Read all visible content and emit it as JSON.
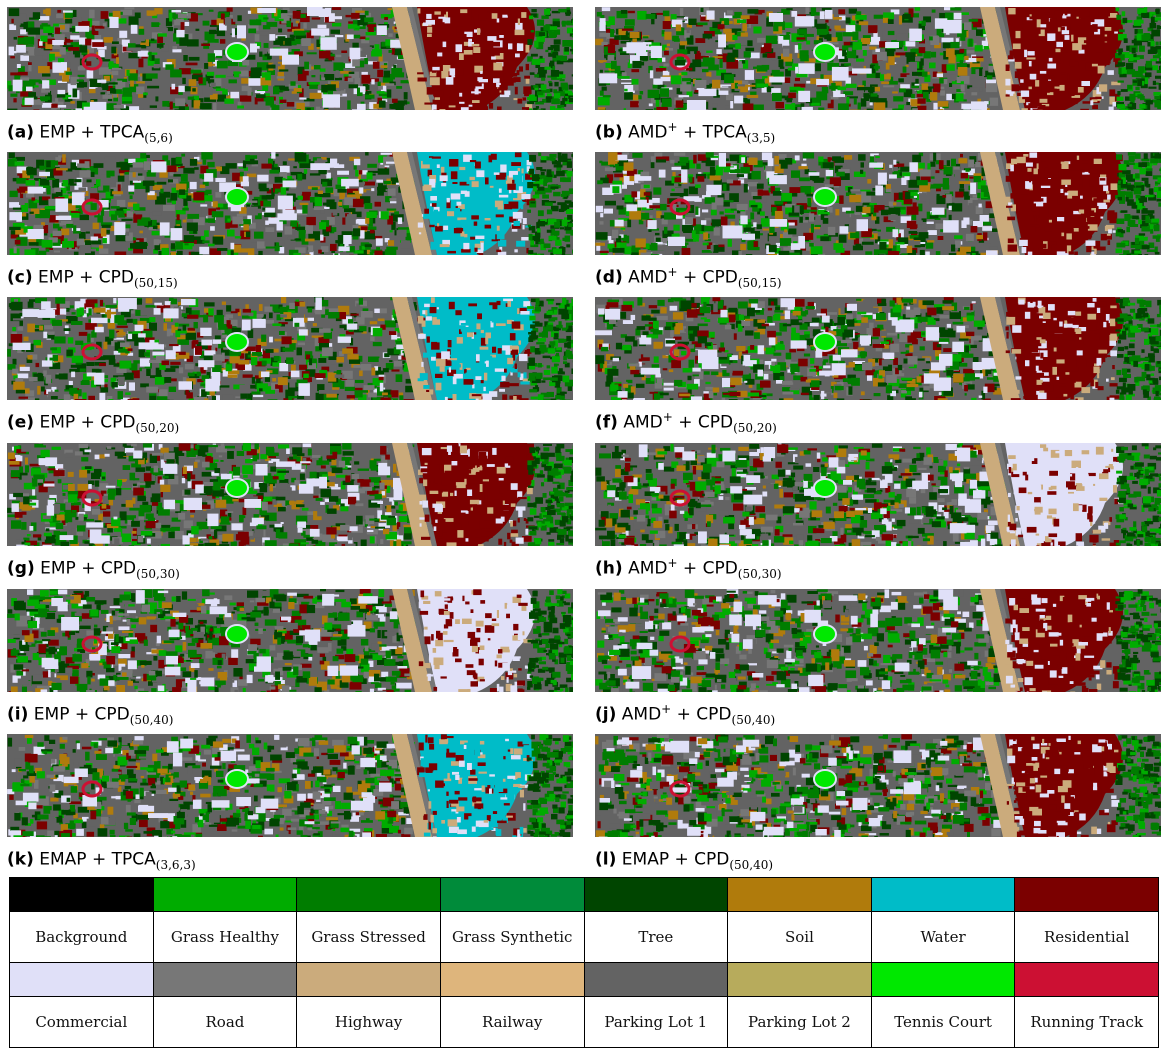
{
  "panels": [
    {
      "label": "(a)",
      "method": "EMP",
      "sup": "",
      "plus": "+",
      "variant": "TPCA",
      "params": "(5,6)",
      "dominant": "residential"
    },
    {
      "label": "(b)",
      "method": "AMD",
      "sup": "+",
      "plus": "+",
      "variant": "TPCA",
      "params": "(3,5)",
      "dominant": "residential"
    },
    {
      "label": "(c)",
      "method": "EMP",
      "sup": "",
      "plus": "+",
      "variant": "CPD",
      "params": "(50,15)",
      "dominant": "water"
    },
    {
      "label": "(d)",
      "method": "AMD",
      "sup": "+",
      "plus": "+",
      "variant": "CPD",
      "params": "(50,15)",
      "dominant": "residential"
    },
    {
      "label": "(e)",
      "method": "EMP",
      "sup": "",
      "plus": "+",
      "variant": "CPD",
      "params": "(50,20)",
      "dominant": "water"
    },
    {
      "label": "(f)",
      "method": "AMD",
      "sup": "+",
      "plus": "+",
      "variant": "CPD",
      "params": "(50,20)",
      "dominant": "residential"
    },
    {
      "label": "(g)",
      "method": "EMP",
      "sup": "",
      "plus": "+",
      "variant": "CPD",
      "params": "(50,30)",
      "dominant": "residential"
    },
    {
      "label": "(h)",
      "method": "AMD",
      "sup": "+",
      "plus": "+",
      "variant": "CPD",
      "params": "(50,30)",
      "dominant": "commercial"
    },
    {
      "label": "(i)",
      "method": "EMP",
      "sup": "",
      "plus": "+",
      "variant": "CPD",
      "params": "(50,40)",
      "dominant": "commercial"
    },
    {
      "label": "(j)",
      "method": "AMD",
      "sup": "+",
      "plus": "+",
      "variant": "CPD",
      "params": "(50,40)",
      "dominant": "residential"
    },
    {
      "label": "(k)",
      "method": "EMAP",
      "sup": "",
      "plus": "+",
      "variant": "TPCA",
      "params": "(3,6,3)",
      "dominant": "water"
    },
    {
      "label": "(l)",
      "method": "EMAP",
      "sup": "",
      "plus": "+",
      "variant": "CPD",
      "params": "(50,40)",
      "dominant": "residential"
    }
  ],
  "legend": [
    {
      "name": "Background",
      "color": "#000000"
    },
    {
      "name": "Grass Healthy",
      "color": "#00ac00"
    },
    {
      "name": "Grass Stressed",
      "color": "#007d00"
    },
    {
      "name": "Grass Synthetic",
      "color": "#008b3a"
    },
    {
      "name": "Tree",
      "color": "#004500"
    },
    {
      "name": "Soil",
      "color": "#b07b0c"
    },
    {
      "name": "Water",
      "color": "#00bcc8"
    },
    {
      "name": "Residential",
      "color": "#7b0000"
    },
    {
      "name": "Commercial",
      "color": "#e0e0f8"
    },
    {
      "name": "Road",
      "color": "#777777"
    },
    {
      "name": "Highway",
      "color": "#cbab7c"
    },
    {
      "name": "Railway",
      "color": "#deb57c"
    },
    {
      "name": "Parking Lot 1",
      "color": "#636363"
    },
    {
      "name": "Parking Lot 2",
      "color": "#b7ab5c"
    },
    {
      "name": "Tennis Court",
      "color": "#00e800"
    },
    {
      "name": "Running Track",
      "color": "#cc1033"
    }
  ]
}
